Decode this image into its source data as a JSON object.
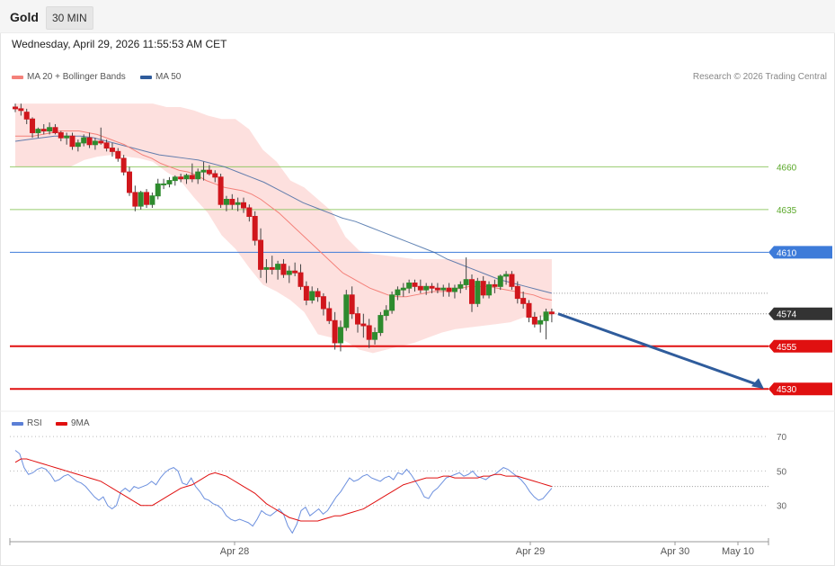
{
  "header": {
    "title": "Gold",
    "timeframe": "30 MIN",
    "datetime": "Wednesday, April 29, 2026 11:55:53 AM CET",
    "credit": "Research © 2026 Trading Central"
  },
  "legend": {
    "ma20": {
      "label": "MA 20 + Bollinger Bands",
      "color": "#f4817a"
    },
    "ma50": {
      "label": "MA 50",
      "color": "#2f5c9c"
    },
    "rsi": {
      "label": "RSI",
      "color": "#5b7fd6"
    },
    "rsi_ma": {
      "label": "9MA",
      "color": "#e01010"
    }
  },
  "chart_data": [
    {
      "type": "candlestick",
      "name": "price",
      "price_range": [
        4518,
        4705
      ],
      "candles": [
        {
          "o": 4695,
          "h": 4697,
          "l": 4692,
          "c": 4694
        },
        {
          "o": 4694,
          "h": 4697,
          "l": 4690,
          "c": 4693
        },
        {
          "o": 4692,
          "h": 4694,
          "l": 4685,
          "c": 4688
        },
        {
          "o": 4688,
          "h": 4689,
          "l": 4677,
          "c": 4680
        },
        {
          "o": 4680,
          "h": 4683,
          "l": 4677,
          "c": 4682
        },
        {
          "o": 4682,
          "h": 4685,
          "l": 4679,
          "c": 4681
        },
        {
          "o": 4681,
          "h": 4686,
          "l": 4679,
          "c": 4683
        },
        {
          "o": 4683,
          "h": 4685,
          "l": 4679,
          "c": 4680
        },
        {
          "o": 4680,
          "h": 4681,
          "l": 4675,
          "c": 4677
        },
        {
          "o": 4677,
          "h": 4680,
          "l": 4673,
          "c": 4678
        },
        {
          "o": 4678,
          "h": 4680,
          "l": 4670,
          "c": 4672
        },
        {
          "o": 4672,
          "h": 4676,
          "l": 4669,
          "c": 4674
        },
        {
          "o": 4674,
          "h": 4679,
          "l": 4672,
          "c": 4677
        },
        {
          "o": 4677,
          "h": 4680,
          "l": 4671,
          "c": 4673
        },
        {
          "o": 4673,
          "h": 4677,
          "l": 4670,
          "c": 4675
        },
        {
          "o": 4675,
          "h": 4683,
          "l": 4673,
          "c": 4674
        },
        {
          "o": 4674,
          "h": 4676,
          "l": 4669,
          "c": 4671
        },
        {
          "o": 4671,
          "h": 4674,
          "l": 4666,
          "c": 4669
        },
        {
          "o": 4669,
          "h": 4671,
          "l": 4663,
          "c": 4665
        },
        {
          "o": 4665,
          "h": 4667,
          "l": 4655,
          "c": 4657
        },
        {
          "o": 4657,
          "h": 4660,
          "l": 4643,
          "c": 4645
        },
        {
          "o": 4645,
          "h": 4649,
          "l": 4634,
          "c": 4637
        },
        {
          "o": 4637,
          "h": 4646,
          "l": 4635,
          "c": 4645
        },
        {
          "o": 4645,
          "h": 4647,
          "l": 4636,
          "c": 4638
        },
        {
          "o": 4638,
          "h": 4645,
          "l": 4636,
          "c": 4643
        },
        {
          "o": 4643,
          "h": 4653,
          "l": 4641,
          "c": 4650
        },
        {
          "o": 4650,
          "h": 4653,
          "l": 4647,
          "c": 4650
        },
        {
          "o": 4650,
          "h": 4654,
          "l": 4648,
          "c": 4652
        },
        {
          "o": 4652,
          "h": 4655,
          "l": 4649,
          "c": 4654
        },
        {
          "o": 4654,
          "h": 4656,
          "l": 4651,
          "c": 4653
        },
        {
          "o": 4653,
          "h": 4656,
          "l": 4650,
          "c": 4655
        },
        {
          "o": 4655,
          "h": 4662,
          "l": 4651,
          "c": 4653
        },
        {
          "o": 4653,
          "h": 4659,
          "l": 4650,
          "c": 4657
        },
        {
          "o": 4657,
          "h": 4663,
          "l": 4652,
          "c": 4658
        },
        {
          "o": 4658,
          "h": 4661,
          "l": 4655,
          "c": 4656
        },
        {
          "o": 4656,
          "h": 4658,
          "l": 4651,
          "c": 4654
        },
        {
          "o": 4654,
          "h": 4656,
          "l": 4636,
          "c": 4638
        },
        {
          "o": 4638,
          "h": 4643,
          "l": 4634,
          "c": 4641
        },
        {
          "o": 4641,
          "h": 4644,
          "l": 4635,
          "c": 4638
        },
        {
          "o": 4638,
          "h": 4642,
          "l": 4634,
          "c": 4639
        },
        {
          "o": 4639,
          "h": 4642,
          "l": 4633,
          "c": 4636
        },
        {
          "o": 4636,
          "h": 4638,
          "l": 4628,
          "c": 4631
        },
        {
          "o": 4631,
          "h": 4634,
          "l": 4614,
          "c": 4617
        },
        {
          "o": 4617,
          "h": 4624,
          "l": 4595,
          "c": 4600
        },
        {
          "o": 4600,
          "h": 4606,
          "l": 4592,
          "c": 4601
        },
        {
          "o": 4601,
          "h": 4608,
          "l": 4597,
          "c": 4600
        },
        {
          "o": 4600,
          "h": 4605,
          "l": 4594,
          "c": 4603
        },
        {
          "o": 4603,
          "h": 4606,
          "l": 4595,
          "c": 4597
        },
        {
          "o": 4597,
          "h": 4602,
          "l": 4592,
          "c": 4599
        },
        {
          "o": 4599,
          "h": 4604,
          "l": 4596,
          "c": 4598
        },
        {
          "o": 4598,
          "h": 4603,
          "l": 4588,
          "c": 4590
        },
        {
          "o": 4590,
          "h": 4593,
          "l": 4579,
          "c": 4582
        },
        {
          "o": 4582,
          "h": 4590,
          "l": 4580,
          "c": 4587
        },
        {
          "o": 4587,
          "h": 4589,
          "l": 4581,
          "c": 4584
        },
        {
          "o": 4584,
          "h": 4586,
          "l": 4573,
          "c": 4577
        },
        {
          "o": 4577,
          "h": 4581,
          "l": 4568,
          "c": 4570
        },
        {
          "o": 4570,
          "h": 4575,
          "l": 4553,
          "c": 4557
        },
        {
          "o": 4557,
          "h": 4570,
          "l": 4552,
          "c": 4566
        },
        {
          "o": 4566,
          "h": 4588,
          "l": 4564,
          "c": 4585
        },
        {
          "o": 4585,
          "h": 4590,
          "l": 4571,
          "c": 4574
        },
        {
          "o": 4574,
          "h": 4578,
          "l": 4563,
          "c": 4568
        },
        {
          "o": 4568,
          "h": 4574,
          "l": 4560,
          "c": 4567
        },
        {
          "o": 4567,
          "h": 4571,
          "l": 4554,
          "c": 4559
        },
        {
          "o": 4559,
          "h": 4566,
          "l": 4556,
          "c": 4563
        },
        {
          "o": 4563,
          "h": 4575,
          "l": 4561,
          "c": 4573
        },
        {
          "o": 4573,
          "h": 4579,
          "l": 4570,
          "c": 4576
        },
        {
          "o": 4576,
          "h": 4587,
          "l": 4574,
          "c": 4585
        },
        {
          "o": 4585,
          "h": 4590,
          "l": 4582,
          "c": 4588
        },
        {
          "o": 4588,
          "h": 4592,
          "l": 4584,
          "c": 4589
        },
        {
          "o": 4589,
          "h": 4594,
          "l": 4586,
          "c": 4592
        },
        {
          "o": 4592,
          "h": 4594,
          "l": 4587,
          "c": 4590
        },
        {
          "o": 4590,
          "h": 4594,
          "l": 4586,
          "c": 4588
        },
        {
          "o": 4588,
          "h": 4592,
          "l": 4585,
          "c": 4590
        },
        {
          "o": 4590,
          "h": 4592,
          "l": 4586,
          "c": 4589
        },
        {
          "o": 4589,
          "h": 4592,
          "l": 4586,
          "c": 4588
        },
        {
          "o": 4588,
          "h": 4591,
          "l": 4584,
          "c": 4589
        },
        {
          "o": 4589,
          "h": 4592,
          "l": 4584,
          "c": 4587
        },
        {
          "o": 4587,
          "h": 4591,
          "l": 4583,
          "c": 4589
        },
        {
          "o": 4589,
          "h": 4593,
          "l": 4586,
          "c": 4591
        },
        {
          "o": 4591,
          "h": 4607,
          "l": 4588,
          "c": 4594
        },
        {
          "o": 4594,
          "h": 4597,
          "l": 4575,
          "c": 4580
        },
        {
          "o": 4580,
          "h": 4595,
          "l": 4578,
          "c": 4593
        },
        {
          "o": 4593,
          "h": 4596,
          "l": 4583,
          "c": 4585
        },
        {
          "o": 4585,
          "h": 4593,
          "l": 4583,
          "c": 4591
        },
        {
          "o": 4591,
          "h": 4594,
          "l": 4586,
          "c": 4590
        },
        {
          "o": 4590,
          "h": 4597,
          "l": 4588,
          "c": 4596
        },
        {
          "o": 4596,
          "h": 4599,
          "l": 4591,
          "c": 4597
        },
        {
          "o": 4597,
          "h": 4599,
          "l": 4588,
          "c": 4590
        },
        {
          "o": 4590,
          "h": 4593,
          "l": 4580,
          "c": 4583
        },
        {
          "o": 4583,
          "h": 4587,
          "l": 4577,
          "c": 4580
        },
        {
          "o": 4580,
          "h": 4582,
          "l": 4569,
          "c": 4572
        },
        {
          "o": 4572,
          "h": 4575,
          "l": 4566,
          "c": 4568
        },
        {
          "o": 4568,
          "h": 4573,
          "l": 4563,
          "c": 4570
        },
        {
          "o": 4570,
          "h": 4577,
          "l": 4559,
          "c": 4575
        },
        {
          "o": 4575,
          "h": 4577,
          "l": 4569,
          "c": 4574
        }
      ],
      "ma20": [
        4678,
        4678,
        4678,
        4679,
        4680,
        4681,
        4681,
        4681,
        4680,
        4679,
        4677,
        4675,
        4673,
        4670,
        4667,
        4665,
        4662,
        4660,
        4658,
        4657,
        4655,
        4652,
        4650,
        4648,
        4647,
        4646,
        4644,
        4641,
        4637,
        4633,
        4628,
        4623,
        4618,
        4613,
        4608,
        4603,
        4598,
        4595,
        4592,
        4589,
        4587,
        4585,
        4584,
        4584,
        4585,
        4586,
        4587,
        4587,
        4588,
        4589,
        4590,
        4590,
        4590,
        4589,
        4588,
        4587,
        4586,
        4585,
        4583,
        4582
      ],
      "ma50": [
        4675,
        4676,
        4677,
        4678,
        4678,
        4678,
        4677,
        4675,
        4673,
        4671,
        4669,
        4667,
        4666,
        4665,
        4664,
        4662,
        4660,
        4657,
        4654,
        4651,
        4647,
        4643,
        4639,
        4636,
        4633,
        4630,
        4628,
        4625,
        4622,
        4619,
        4616,
        4613,
        4610,
        4606,
        4603,
        4600,
        4597,
        4594,
        4592,
        4590,
        4588,
        4586
      ],
      "bb_upper": [
        4697,
        4697,
        4697,
        4697,
        4697,
        4697,
        4697,
        4697,
        4697,
        4697,
        4697,
        4695,
        4695,
        4693,
        4690,
        4688,
        4688,
        4682,
        4670,
        4663,
        4652,
        4648,
        4641,
        4634,
        4619,
        4611,
        4609,
        4608,
        4607,
        4606,
        4606,
        4606,
        4606,
        4606,
        4606,
        4606,
        4606,
        4606,
        4606,
        4606
      ],
      "bb_lower": [
        4660,
        4660,
        4660,
        4660,
        4660,
        4664,
        4666,
        4667,
        4666,
        4665,
        4663,
        4657,
        4652,
        4642,
        4633,
        4620,
        4612,
        4601,
        4591,
        4587,
        4582,
        4575,
        4562,
        4560,
        4558,
        4553,
        4551,
        4553,
        4555,
        4557,
        4560,
        4563,
        4565,
        4566,
        4567,
        4568,
        4569,
        4572,
        4572,
        4573
      ],
      "levels": [
        {
          "label": "4660",
          "value": 4660,
          "color": "#7cc04a",
          "style": "resistance"
        },
        {
          "label": "4635",
          "value": 4635,
          "color": "#7cc04a",
          "style": "resistance"
        },
        {
          "label": "4610",
          "value": 4610,
          "color": "#3d7bd9",
          "style": "pivot"
        },
        {
          "label": "4574",
          "value": 4574,
          "color": "#333333",
          "style": "current"
        },
        {
          "label": "4555",
          "value": 4555,
          "color": "#e01010",
          "style": "support"
        },
        {
          "label": "4530",
          "value": 4530,
          "color": "#e01010",
          "style": "support"
        }
      ],
      "forecast": {
        "from": 4574,
        "to": 4530,
        "color": "#2f5c9c"
      }
    },
    {
      "type": "line",
      "name": "RSI",
      "ylim": [
        10,
        80
      ],
      "yticks": [
        "70",
        "50",
        "30"
      ],
      "rsi": [
        62,
        60,
        52,
        48,
        49,
        51,
        52,
        51,
        48,
        44,
        45,
        47,
        48,
        46,
        44,
        43,
        41,
        38,
        35,
        33,
        35,
        30,
        28,
        30,
        38,
        40,
        38,
        41,
        40,
        41,
        42,
        44,
        42,
        46,
        49,
        51,
        52,
        50,
        43,
        42,
        46,
        41,
        38,
        34,
        33,
        31,
        30,
        28,
        24,
        22,
        21,
        22,
        21,
        20,
        18,
        22,
        27,
        25,
        24,
        26,
        28,
        25,
        18,
        14,
        19,
        27,
        29,
        24,
        26,
        28,
        25,
        27,
        31,
        35,
        38,
        42,
        46,
        44,
        45,
        47,
        48,
        46,
        45,
        44,
        46,
        47,
        45,
        49,
        48,
        51,
        48,
        44,
        40,
        35,
        34,
        38,
        40,
        43,
        46,
        47,
        48,
        49,
        47,
        48,
        50,
        47,
        46,
        45,
        47,
        48,
        50,
        52,
        51,
        49,
        47,
        45,
        42,
        38,
        35,
        33,
        34,
        37,
        40
      ],
      "rsi_ma": [
        55,
        57,
        57,
        56,
        55,
        54,
        53,
        52,
        51,
        50,
        49,
        48,
        47,
        46,
        45,
        44,
        42,
        40,
        38,
        36,
        34,
        32,
        30,
        30,
        30,
        32,
        34,
        36,
        38,
        40,
        41,
        42,
        44,
        46,
        48,
        49,
        48,
        47,
        45,
        43,
        41,
        39,
        37,
        34,
        31,
        29,
        27,
        25,
        23,
        22,
        21,
        21,
        21,
        21,
        22,
        23,
        24,
        24,
        25,
        26,
        27,
        28,
        30,
        32,
        34,
        36,
        38,
        40,
        42,
        43,
        44,
        45,
        46,
        46,
        46,
        47,
        47,
        46,
        46,
        46,
        46,
        46,
        47,
        47,
        48,
        48,
        47,
        47,
        47,
        46,
        45,
        44,
        43,
        42,
        41
      ]
    }
  ],
  "x_axis": {
    "labels": [
      {
        "text": "Apr 28"
      },
      {
        "text": "Apr 29"
      },
      {
        "text": "Apr 30"
      },
      {
        "text": "May 10"
      }
    ]
  }
}
